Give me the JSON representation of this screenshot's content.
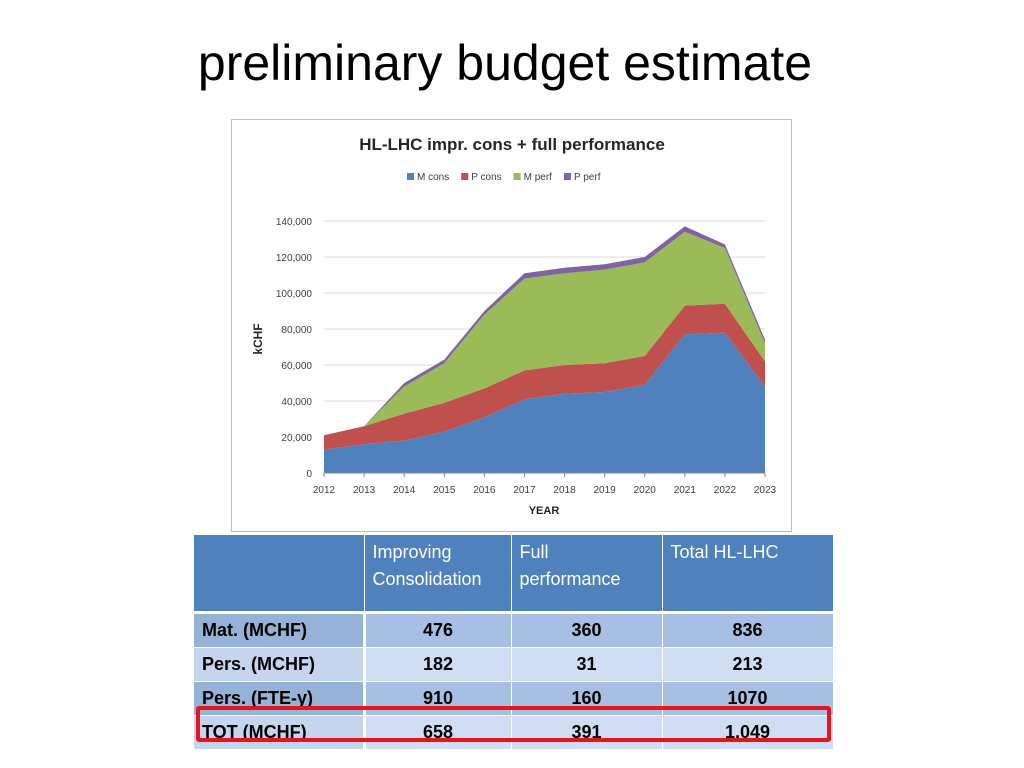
{
  "slide": {
    "title": "preliminary budget estimate"
  },
  "chart_data": {
    "type": "area",
    "stacked": true,
    "title": "HL-LHC impr. cons + full performance",
    "xlabel": "YEAR",
    "ylabel": "kCHF",
    "x": [
      "2012",
      "2013",
      "2014",
      "2015",
      "2016",
      "2017",
      "2018",
      "2019",
      "2020",
      "2021",
      "2022",
      "2023"
    ],
    "yticks": [
      "0",
      "20,000",
      "40,000",
      "60,000",
      "80,000",
      "100,000",
      "120,000",
      "140,000"
    ],
    "ylim": [
      0,
      140000
    ],
    "grid": true,
    "legend_position": "top",
    "series": [
      {
        "name": "M cons",
        "color": "#4f81bd",
        "values": [
          13000,
          16000,
          18000,
          23000,
          31000,
          41000,
          44000,
          45000,
          49000,
          77000,
          78000,
          48000
        ]
      },
      {
        "name": "P cons",
        "color": "#c0504d",
        "values": [
          8000,
          10000,
          15000,
          16000,
          16000,
          16000,
          16000,
          16000,
          16000,
          16000,
          16000,
          14000
        ]
      },
      {
        "name": "M perf",
        "color": "#9bbb59",
        "values": [
          0,
          0,
          15000,
          22000,
          41000,
          51000,
          51000,
          52000,
          52000,
          41000,
          31000,
          10000
        ]
      },
      {
        "name": "P perf",
        "color": "#8064a2",
        "values": [
          0,
          0,
          2000,
          2000,
          2000,
          3000,
          3000,
          3000,
          3000,
          3000,
          2000,
          2000
        ]
      }
    ]
  },
  "table": {
    "headers": [
      "",
      "Improving Consolidation",
      "Full performance",
      "Total HL-LHC"
    ],
    "rows": [
      {
        "label": "Mat. (MCHF)",
        "values": [
          "476",
          "360",
          "836"
        ]
      },
      {
        "label": "Pers. (MCHF)",
        "values": [
          "182",
          "31",
          "213"
        ]
      },
      {
        "label": "Pers. (FTE-y)",
        "values": [
          "910",
          "160",
          "1070"
        ]
      },
      {
        "label": "TOT (MCHF)",
        "values": [
          "658",
          "391",
          "1,049"
        ]
      }
    ],
    "highlight_color": "#e8141c"
  }
}
